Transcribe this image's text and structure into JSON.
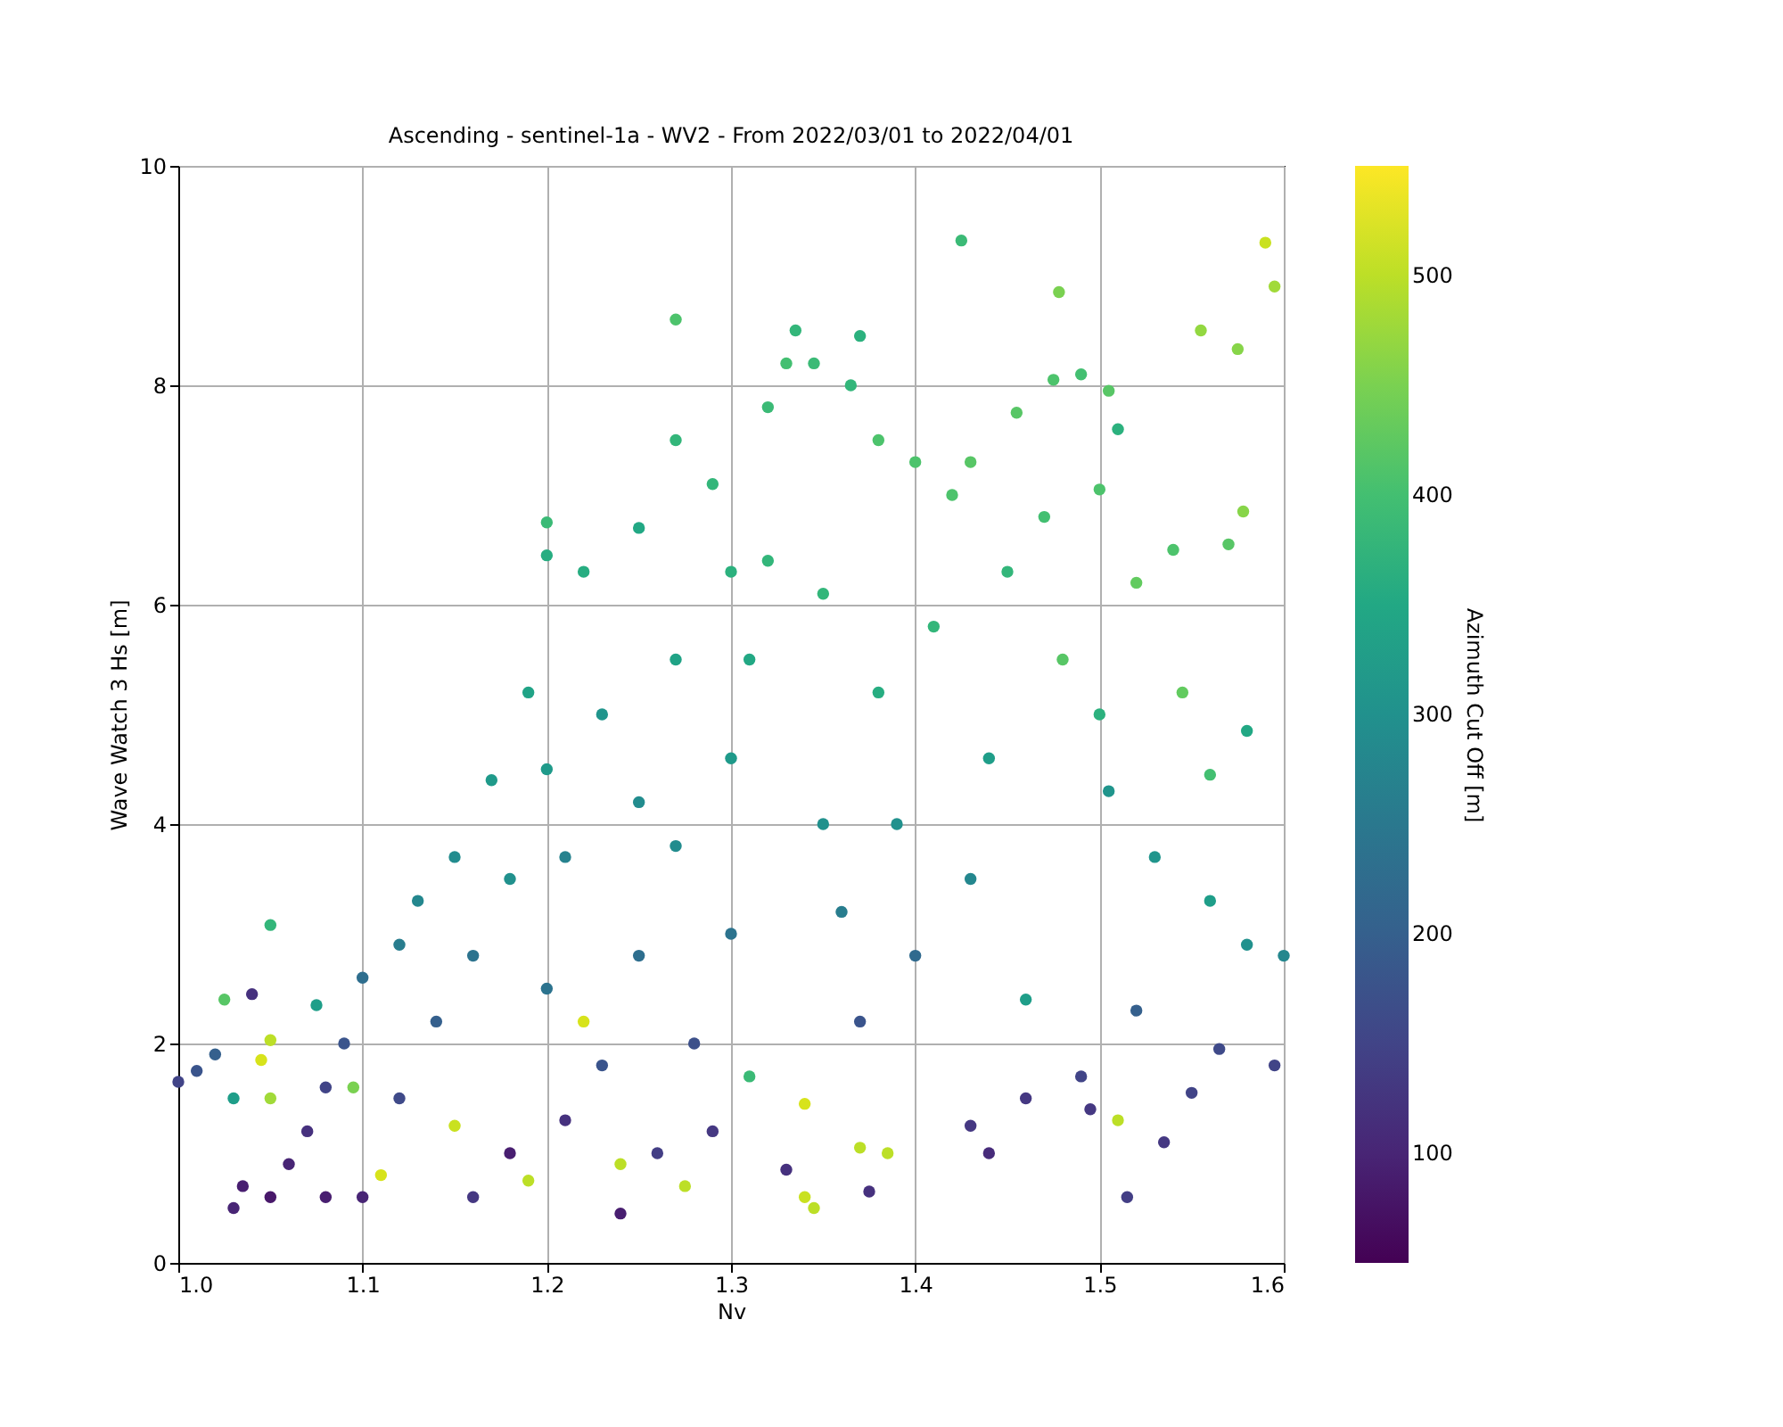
{
  "chart_data": {
    "type": "scatter",
    "title": "Ascending - sentinel-1a - WV2 - From 2022/03/01 to 2022/04/01",
    "xlabel": "Nv",
    "ylabel": "Wave Watch 3 Hs [m]",
    "clabel": "Azimuth Cut Off [m]",
    "x": [
      1.0,
      1.01,
      1.02,
      1.025,
      1.03,
      1.03,
      1.035,
      1.04,
      1.045,
      1.05,
      1.05,
      1.05,
      1.05,
      1.06,
      1.07,
      1.075,
      1.08,
      1.08,
      1.09,
      1.095,
      1.1,
      1.1,
      1.11,
      1.12,
      1.12,
      1.13,
      1.14,
      1.15,
      1.15,
      1.16,
      1.16,
      1.17,
      1.18,
      1.18,
      1.19,
      1.19,
      1.2,
      1.2,
      1.2,
      1.2,
      1.21,
      1.21,
      1.22,
      1.22,
      1.23,
      1.23,
      1.24,
      1.24,
      1.25,
      1.25,
      1.25,
      1.26,
      1.27,
      1.27,
      1.27,
      1.27,
      1.275,
      1.28,
      1.29,
      1.29,
      1.3,
      1.3,
      1.3,
      1.31,
      1.31,
      1.32,
      1.32,
      1.33,
      1.335,
      1.33,
      1.34,
      1.345,
      1.345,
      1.34,
      1.35,
      1.35,
      1.36,
      1.365,
      1.37,
      1.37,
      1.37,
      1.375,
      1.38,
      1.38,
      1.385,
      1.39,
      1.4,
      1.4,
      1.41,
      1.42,
      1.425,
      1.43,
      1.43,
      1.43,
      1.44,
      1.44,
      1.45,
      1.455,
      1.46,
      1.46,
      1.47,
      1.475,
      1.478,
      1.48,
      1.49,
      1.49,
      1.495,
      1.5,
      1.505,
      1.505,
      1.51,
      1.51,
      1.515,
      1.52,
      1.52,
      1.53,
      1.535,
      1.54,
      1.545,
      1.55,
      1.555,
      1.56,
      1.565,
      1.57,
      1.575,
      1.578,
      1.58,
      1.58,
      1.59,
      1.595,
      1.595,
      1.6,
      1.56,
      1.5
    ],
    "values": [
      1.65,
      1.75,
      1.9,
      2.4,
      1.5,
      0.5,
      0.7,
      2.45,
      1.85,
      3.08,
      2.03,
      1.5,
      0.6,
      0.9,
      1.2,
      2.35,
      0.6,
      1.6,
      2.0,
      1.6,
      2.6,
      0.6,
      0.8,
      1.5,
      2.9,
      3.3,
      2.2,
      1.25,
      3.7,
      0.6,
      2.8,
      4.4,
      1.0,
      3.5,
      0.75,
      5.2,
      6.75,
      6.45,
      4.5,
      2.5,
      1.3,
      3.7,
      2.2,
      6.3,
      5.0,
      1.8,
      0.45,
      0.9,
      6.7,
      4.2,
      2.8,
      1.0,
      8.6,
      7.5,
      5.5,
      3.8,
      0.7,
      2.0,
      7.1,
      1.2,
      6.3,
      4.6,
      3.0,
      1.7,
      5.5,
      7.8,
      6.4,
      8.2,
      8.5,
      0.85,
      0.6,
      8.2,
      0.5,
      1.45,
      4.0,
      6.1,
      3.2,
      8.0,
      8.45,
      1.05,
      2.2,
      0.65,
      7.5,
      5.2,
      1.0,
      4.0,
      7.3,
      2.8,
      5.8,
      7.0,
      9.32,
      7.3,
      3.5,
      1.25,
      1.0,
      4.6,
      6.3,
      7.75,
      2.4,
      1.5,
      6.8,
      8.05,
      8.85,
      5.5,
      8.1,
      1.7,
      1.4,
      7.05,
      7.95,
      4.3,
      7.6,
      1.3,
      0.6,
      6.2,
      2.3,
      3.7,
      1.1,
      6.5,
      5.2,
      1.55,
      8.5,
      4.45,
      1.95,
      6.55,
      8.33,
      6.85,
      4.85,
      2.9,
      9.3,
      8.9,
      1.8,
      2.8,
      3.3,
      5.0
    ],
    "cvalues": [
      150,
      180,
      200,
      420,
      330,
      100,
      90,
      120,
      520,
      380,
      500,
      480,
      80,
      100,
      120,
      330,
      90,
      150,
      180,
      450,
      230,
      100,
      520,
      160,
      260,
      280,
      200,
      510,
      290,
      130,
      240,
      320,
      90,
      300,
      500,
      340,
      390,
      360,
      320,
      240,
      120,
      270,
      520,
      360,
      310,
      180,
      90,
      500,
      350,
      290,
      230,
      140,
      410,
      380,
      340,
      290,
      500,
      170,
      380,
      130,
      370,
      320,
      240,
      390,
      350,
      390,
      380,
      400,
      380,
      120,
      510,
      390,
      500,
      520,
      300,
      380,
      260,
      380,
      370,
      500,
      180,
      120,
      410,
      360,
      500,
      300,
      410,
      220,
      380,
      410,
      390,
      420,
      280,
      130,
      110,
      330,
      380,
      420,
      330,
      130,
      400,
      410,
      450,
      420,
      400,
      150,
      130,
      410,
      420,
      310,
      370,
      500,
      140,
      430,
      200,
      310,
      130,
      410,
      430,
      150,
      470,
      400,
      160,
      420,
      460,
      460,
      350,
      300,
      510,
      480,
      150,
      280,
      330,
      370
    ],
    "xlim": [
      1.0,
      1.6
    ],
    "xticks": [
      {
        "value": 1.0,
        "label": "1.0"
      },
      {
        "value": 1.1,
        "label": "1.1"
      },
      {
        "value": 1.2,
        "label": "1.2"
      },
      {
        "value": 1.3,
        "label": "1.3"
      },
      {
        "value": 1.4,
        "label": "1.4"
      },
      {
        "value": 1.5,
        "label": "1.5"
      },
      {
        "value": 1.6,
        "label": "1.6"
      }
    ],
    "ylim": [
      0,
      10
    ],
    "yticks": [
      0,
      2,
      4,
      6,
      8,
      10
    ],
    "clim": [
      50,
      550
    ],
    "cticks": [
      100,
      200,
      300,
      400,
      500
    ],
    "grid": true,
    "marker": "circle"
  }
}
